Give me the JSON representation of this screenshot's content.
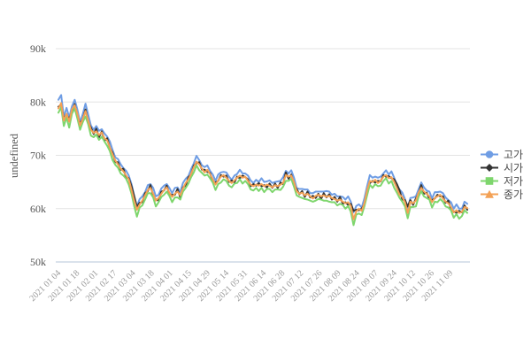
{
  "chart_data": {
    "type": "line",
    "title": "",
    "ylabel": "undefined",
    "xlabel": "",
    "values_unit": "k",
    "ylim_k": [
      50,
      90
    ],
    "grid": "horizontal-only",
    "legend_position": "right",
    "grid_color": "#e3e3e3",
    "axis_line_color": "#b5c5d9",
    "y_tick_label_color": "#555555",
    "x_tick_label_color": "#999999",
    "legend_text_color": "#4a4a4a",
    "background_color": "#ffffff",
    "y_ticks": [
      {
        "label": "90k",
        "value": 90
      },
      {
        "label": "80k",
        "value": 80
      },
      {
        "label": "70k",
        "value": 70
      },
      {
        "label": "60k",
        "value": 60
      },
      {
        "label": "50k",
        "value": 50
      }
    ],
    "x_tick_labels": [
      "2021 01 04",
      "2021 01 18",
      "2021 02 01",
      "2021 02 17",
      "2021 03 04",
      "2021 03 18",
      "2021 04 01",
      "2021 04 15",
      "2021 04 29",
      "2021 05 14",
      "2021 05 31",
      "2021 06 14",
      "2021 06 28",
      "2021 07 12",
      "2021 07 26",
      "2021 08 09",
      "2021 08 24",
      "2021 09 07",
      "2021 09 24",
      "2021 10 12",
      "2021 10 26",
      "2021 11 09"
    ],
    "series": [
      {
        "id": "high",
        "name": "고가",
        "color": "#6f9de4",
        "marker": "circle",
        "values": [
          80.4,
          81.3,
          77.2,
          78.9,
          77.1,
          79.2,
          80.4,
          78.6,
          76.2,
          77.7,
          79.7,
          77.6,
          75.6,
          74.8,
          75.5,
          74.6,
          74.9,
          74.1,
          73.5,
          72.6,
          71.0,
          69.6,
          69.3,
          68.3,
          67.6,
          67.1,
          66.2,
          64.6,
          62.3,
          60.4,
          61.8,
          62.3,
          63.1,
          64.4,
          64.6,
          63.9,
          62.3,
          62.6,
          63.8,
          64.3,
          64.6,
          63.9,
          62.9,
          63.9,
          64.0,
          63.1,
          64.8,
          65.6,
          66.1,
          67.4,
          68.5,
          69.9,
          69.1,
          68.1,
          67.8,
          68.1,
          67.1,
          66.4,
          65.2,
          66.4,
          66.8,
          66.9,
          66.8,
          66.0,
          65.4,
          66.2,
          66.5,
          67.3,
          66.6,
          66.6,
          66.2,
          65.3,
          64.8,
          65.4,
          65.0,
          65.7,
          65.0,
          65.1,
          65.3,
          64.8,
          65.0,
          65.1,
          65.2,
          65.9,
          67.1,
          66.6,
          67.2,
          65.8,
          63.9,
          63.7,
          63.7,
          63.6,
          63.6,
          62.9,
          62.9,
          63.2,
          63.2,
          63.2,
          63.2,
          63.3,
          63.2,
          62.6,
          62.8,
          62.3,
          62.3,
          62.2,
          61.7,
          62.3,
          61.3,
          59.3,
          60.5,
          60.8,
          60.2,
          61.9,
          64.2,
          66.3,
          65.8,
          66.0,
          65.8,
          66.0,
          66.6,
          67.2,
          66.4,
          67.0,
          65.8,
          64.4,
          63.6,
          63.0,
          61.8,
          60.1,
          62.0,
          62.1,
          62.3,
          63.6,
          64.9,
          64.0,
          63.4,
          63.2,
          61.9,
          63.1,
          63.1,
          63.2,
          62.9,
          62.1,
          61.6,
          61.2,
          60.0,
          60.8,
          60.0,
          60.0,
          61.3,
          60.9
        ]
      },
      {
        "id": "open",
        "name": "시가",
        "color": "#333333",
        "marker": "diamond",
        "values": [
          79.1,
          79.5,
          76.9,
          77.6,
          76.8,
          78.2,
          79.6,
          77.3,
          76.0,
          76.7,
          78.6,
          76.2,
          75.2,
          74.0,
          75.0,
          73.4,
          74.5,
          72.7,
          73.2,
          71.4,
          70.5,
          68.7,
          68.7,
          67.3,
          67.5,
          65.8,
          65.7,
          64.2,
          62.3,
          60.3,
          61.1,
          61.2,
          62.9,
          63.3,
          64.4,
          62.4,
          61.7,
          61.5,
          63.2,
          63.4,
          64.3,
          62.7,
          62.6,
          62.6,
          63.7,
          62.1,
          64.0,
          64.3,
          65.9,
          66.4,
          68.1,
          68.5,
          68.7,
          67.3,
          67.3,
          66.9,
          66.7,
          65.0,
          64.9,
          65.2,
          66.3,
          66.0,
          66.2,
          65.0,
          65.3,
          64.9,
          66.0,
          65.7,
          66.2,
          65.9,
          65.5,
          64.2,
          64.6,
          64.3,
          64.8,
          64.2,
          64.4,
          64.0,
          64.7,
          63.9,
          64.7,
          63.9,
          64.9,
          64.6,
          66.8,
          65.6,
          66.4,
          64.5,
          63.7,
          62.7,
          63.3,
          62.2,
          63.2,
          62.1,
          62.4,
          62.0,
          62.8,
          61.8,
          62.9,
          62.1,
          62.7,
          61.7,
          62.2,
          61.3,
          62.2,
          60.9,
          61.2,
          60.7,
          60.9,
          59.6,
          59.8,
          59.7,
          60.0,
          60.8,
          62.8,
          64.8,
          65.2,
          64.9,
          65.2,
          65.1,
          66.3,
          66.0,
          66.1,
          65.7,
          65.5,
          64.6,
          63.4,
          61.7,
          61.6,
          60.4,
          61.6,
          60.7,
          61.9,
          62.8,
          64.4,
          62.8,
          63.0,
          61.8,
          61.6,
          61.9,
          62.6,
          62.3,
          62.3,
          61.1,
          61.5,
          59.9,
          59.5,
          59.2,
          59.6,
          59.3,
          60.6,
          59.8
        ]
      },
      {
        "id": "low",
        "name": "저가",
        "color": "#7ed66d",
        "marker": "square",
        "values": [
          78.0,
          79.0,
          75.5,
          77.1,
          75.2,
          77.8,
          78.8,
          76.9,
          74.8,
          76.2,
          77.3,
          75.8,
          73.7,
          73.4,
          73.9,
          72.9,
          73.5,
          72.6,
          71.8,
          70.8,
          69.1,
          68.2,
          67.7,
          66.6,
          66.2,
          65.6,
          64.5,
          62.8,
          60.4,
          58.5,
          60.2,
          60.6,
          61.7,
          62.9,
          62.9,
          62.1,
          60.4,
          61.2,
          62.2,
          62.6,
          63.2,
          62.4,
          61.2,
          62.1,
          62.1,
          61.7,
          63.2,
          63.9,
          64.7,
          65.9,
          66.8,
          68.1,
          67.2,
          66.7,
          66.2,
          66.4,
          65.7,
          64.9,
          63.5,
          64.6,
          64.9,
          65.5,
          65.2,
          64.3,
          64.0,
          64.7,
          64.8,
          65.5,
          64.7,
          65.2,
          64.6,
          63.6,
          63.4,
          63.9,
          63.3,
          63.9,
          63.1,
          63.7,
          63.7,
          63.1,
          63.6,
          63.6,
          63.5,
          64.1,
          65.2,
          65.2,
          65.6,
          64.1,
          62.5,
          62.2,
          62.0,
          61.8,
          61.7,
          61.5,
          61.3,
          61.5,
          61.8,
          61.7,
          61.5,
          61.5,
          61.3,
          61.2,
          61.2,
          60.6,
          60.9,
          60.7,
          60.0,
          60.5,
          59.4,
          56.9,
          58.9,
          59.1,
          58.8,
          60.4,
          62.5,
          64.5,
          63.9,
          64.6,
          64.2,
          64.3,
          65.2,
          65.7,
          64.7,
          65.2,
          63.9,
          63.0,
          62.0,
          61.3,
          60.4,
          58.2,
          60.3,
          60.3,
          60.4,
          62.2,
          63.3,
          62.3,
          62.0,
          61.7,
          60.2,
          61.3,
          61.2,
          61.8,
          61.3,
          60.4,
          60.2,
          59.7,
          58.3,
          59.0,
          58.1,
          58.6,
          59.7,
          59.2
        ]
      },
      {
        "id": "close",
        "name": "종가",
        "color": "#f3a155",
        "marker": "triangle",
        "values": [
          78.8,
          79.8,
          76.5,
          77.8,
          76.3,
          78.6,
          79.4,
          77.8,
          75.6,
          76.8,
          78.3,
          76.5,
          74.8,
          74.2,
          74.5,
          73.8,
          74.3,
          73.2,
          72.8,
          71.5,
          70.2,
          69.0,
          68.3,
          67.5,
          67.0,
          66.2,
          65.5,
          63.5,
          61.5,
          59.8,
          60.8,
          61.5,
          62.5,
          63.5,
          63.9,
          62.8,
          61.5,
          62.0,
          62.8,
          63.5,
          64.0,
          63.0,
          62.2,
          62.8,
          63.2,
          62.5,
          63.8,
          64.8,
          65.5,
          66.5,
          67.8,
          68.8,
          68.3,
          67.5,
          66.8,
          67.3,
          66.5,
          65.5,
          64.5,
          65.3,
          66.0,
          66.3,
          65.8,
          65.2,
          64.8,
          65.3,
          65.8,
          66.2,
          65.8,
          66.0,
          65.2,
          64.5,
          64.2,
          64.5,
          64.3,
          64.6,
          64.2,
          64.5,
          64.3,
          64.0,
          64.4,
          64.2,
          64.5,
          64.8,
          66.3,
          66.0,
          66.2,
          65.0,
          63.3,
          62.8,
          63.0,
          62.5,
          62.8,
          62.3,
          61.9,
          62.4,
          62.6,
          62.3,
          62.5,
          62.2,
          62.4,
          62.0,
          61.8,
          61.5,
          61.7,
          61.3,
          61.0,
          61.2,
          60.5,
          58.0,
          59.5,
          60.0,
          59.6,
          61.0,
          63.5,
          65.2,
          65.0,
          65.4,
          64.8,
          65.2,
          66.0,
          66.3,
          65.7,
          65.9,
          65.0,
          63.8,
          62.6,
          62.2,
          61.2,
          59.2,
          61.3,
          61.0,
          61.5,
          63.0,
          63.9,
          63.2,
          62.8,
          62.3,
          61.2,
          62.0,
          62.3,
          62.6,
          61.9,
          61.3,
          61.0,
          60.3,
          59.3,
          59.7,
          59.2,
          59.4,
          60.3,
          60.1
        ]
      }
    ]
  }
}
